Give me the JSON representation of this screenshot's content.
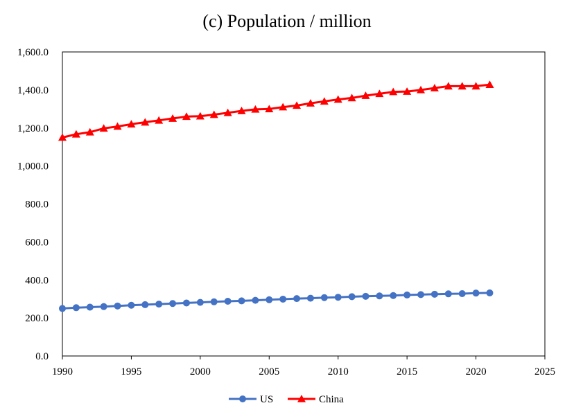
{
  "chart_data": {
    "type": "line",
    "title": "(c) Population / million",
    "xlabel": "",
    "ylabel": "",
    "xlim": [
      1990,
      2025
    ],
    "ylim": [
      0,
      1600
    ],
    "x_ticks": [
      1990,
      1995,
      2000,
      2005,
      2010,
      2015,
      2020,
      2025
    ],
    "y_ticks": [
      0,
      200,
      400,
      600,
      800,
      1000,
      1200,
      1400,
      1600
    ],
    "x_tick_labels": [
      "1990",
      "1995",
      "2000",
      "2005",
      "2010",
      "2015",
      "2020",
      "2025"
    ],
    "y_tick_labels": [
      "0.0",
      "200.0",
      "400.0",
      "600.0",
      "800.0",
      "1,000.0",
      "1,200.0",
      "1,400.0",
      "1,600.0"
    ],
    "grid": false,
    "legend_position": "bottom-center",
    "x": [
      1990,
      1991,
      1992,
      1993,
      1994,
      1995,
      1996,
      1997,
      1998,
      1999,
      2000,
      2001,
      2002,
      2003,
      2004,
      2005,
      2006,
      2007,
      2008,
      2009,
      2010,
      2011,
      2012,
      2013,
      2014,
      2015,
      2016,
      2017,
      2018,
      2019,
      2020,
      2021
    ],
    "series": [
      {
        "name": "US",
        "color": "#4472C4",
        "marker": "circle",
        "values": [
          250,
          254,
          257,
          260,
          263,
          267,
          270,
          273,
          276,
          279,
          282,
          285,
          288,
          290,
          293,
          296,
          299,
          302,
          304,
          307,
          309,
          312,
          314,
          316,
          318,
          321,
          323,
          325,
          327,
          328,
          331,
          332
        ]
      },
      {
        "name": "China",
        "color": "#FF0000",
        "marker": "triangle",
        "values": [
          1150,
          1167,
          1178,
          1198,
          1208,
          1220,
          1230,
          1240,
          1250,
          1260,
          1262,
          1270,
          1280,
          1290,
          1298,
          1300,
          1310,
          1318,
          1330,
          1340,
          1350,
          1358,
          1370,
          1380,
          1390,
          1392,
          1400,
          1410,
          1420,
          1420,
          1420,
          1428
        ]
      }
    ]
  }
}
